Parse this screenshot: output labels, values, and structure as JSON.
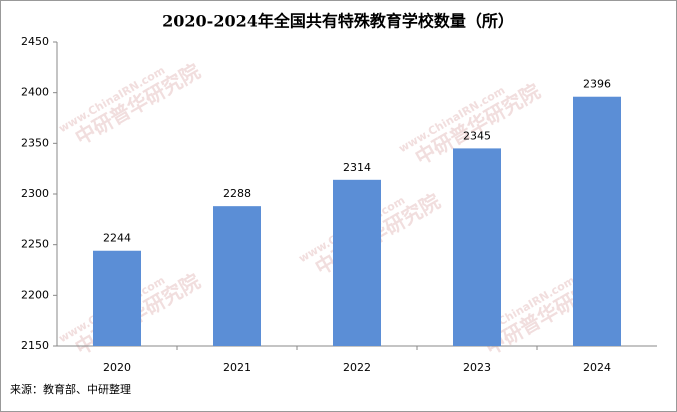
{
  "chart_data": {
    "type": "bar",
    "title": "2020-2024年全国共有特殊教育学校数量（所）",
    "categories": [
      "2020",
      "2021",
      "2022",
      "2023",
      "2024"
    ],
    "values": [
      2244,
      2288,
      2314,
      2345,
      2396
    ],
    "color": "#5b8ed6",
    "ylim": [
      2150,
      2450
    ],
    "yticks": [
      2150,
      2200,
      2250,
      2300,
      2350,
      2400,
      2450
    ],
    "grid": false,
    "source": "来源：教育部、中研整理",
    "watermark": [
      "www.ChinaIRN.com",
      "中研普华研究院"
    ]
  }
}
